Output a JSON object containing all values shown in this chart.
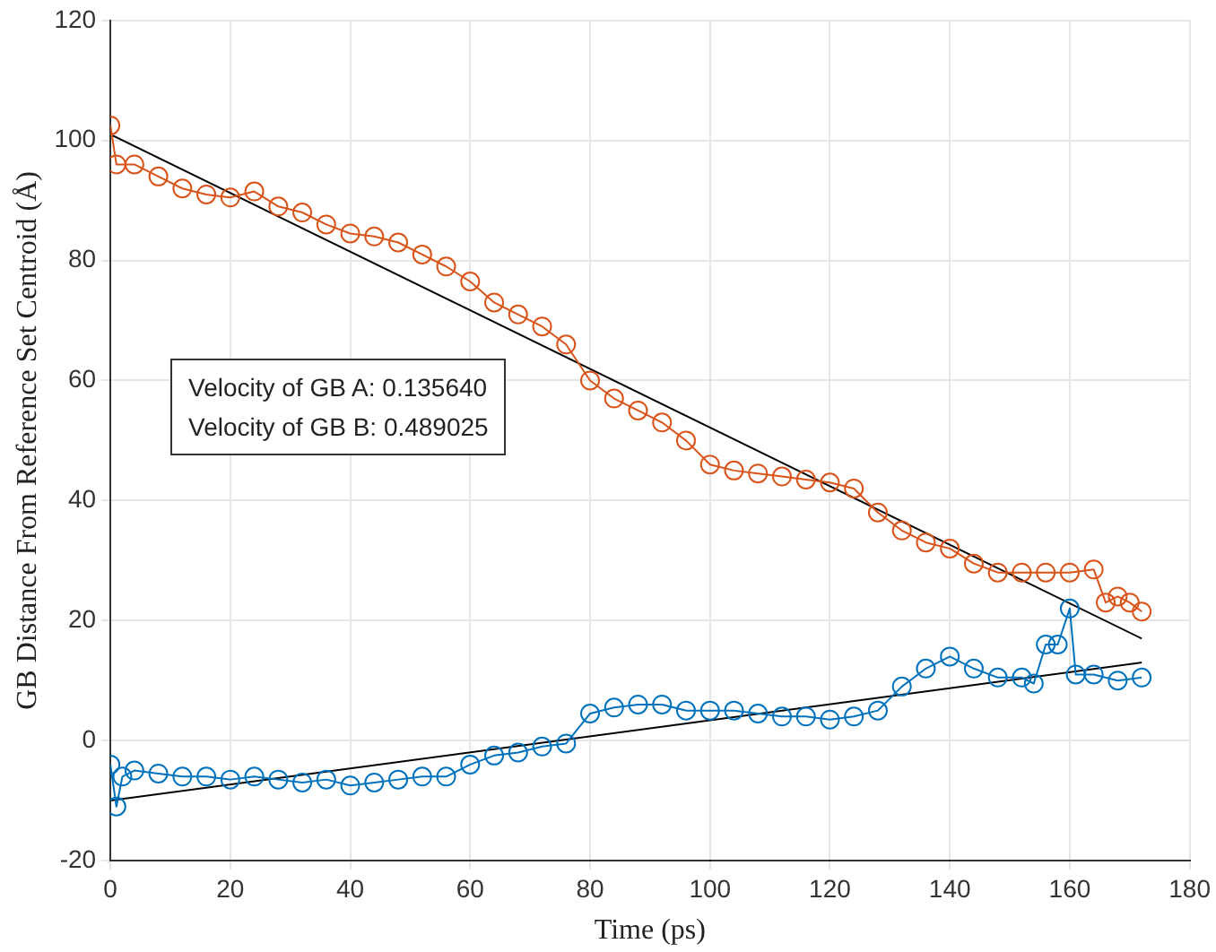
{
  "chart_data": {
    "type": "line",
    "xlabel": "Time (ps)",
    "ylabel": "GB Distance From Reference Set Centroid (Å)",
    "xlim": [
      0,
      180
    ],
    "xticks": [
      0,
      20,
      40,
      60,
      80,
      100,
      120,
      140,
      160,
      180
    ],
    "ylim": [
      -20,
      120
    ],
    "yticks": [
      -20,
      0,
      20,
      40,
      60,
      80,
      100,
      120
    ],
    "grid": true,
    "marker": "circle",
    "line_style": "solid",
    "annotations": [
      "Velocity of GB A: 0.135640",
      "Velocity of GB B: 0.489025"
    ],
    "series": [
      {
        "color": "#d95319",
        "x": [
          0,
          1,
          4,
          8,
          12,
          16,
          20,
          24,
          28,
          32,
          36,
          40,
          44,
          48,
          52,
          56,
          60,
          64,
          68,
          72,
          76,
          80,
          84,
          88,
          92,
          96,
          100,
          104,
          108,
          112,
          116,
          120,
          124,
          128,
          132,
          136,
          140,
          144,
          148,
          152,
          156,
          160,
          164,
          166,
          168,
          170,
          172
        ],
        "values": [
          102.5,
          96,
          96,
          94,
          92,
          91,
          90.5,
          91.5,
          89,
          88,
          86,
          84.5,
          84,
          83,
          81,
          79,
          76.5,
          73,
          71,
          69,
          66,
          60,
          57,
          55,
          53,
          50,
          46,
          45,
          44.5,
          44,
          43.5,
          43,
          42,
          38,
          35,
          33,
          32,
          29.5,
          28,
          28,
          28,
          28,
          28.5,
          23,
          24,
          23,
          21.5
        ]
      },
      {
        "color": "#0072bd",
        "x": [
          0,
          1,
          2,
          4,
          8,
          12,
          16,
          20,
          24,
          28,
          32,
          36,
          40,
          44,
          48,
          52,
          56,
          60,
          64,
          68,
          72,
          76,
          80,
          84,
          88,
          92,
          96,
          100,
          104,
          108,
          112,
          116,
          120,
          124,
          128,
          132,
          136,
          140,
          144,
          148,
          152,
          154,
          156,
          158,
          160,
          161,
          164,
          168,
          172
        ],
        "values": [
          -4,
          -11,
          -6,
          -5,
          -5.5,
          -6,
          -6,
          -6.5,
          -6,
          -6.5,
          -7,
          -6.5,
          -7.5,
          -7,
          -6.5,
          -6,
          -6,
          -4,
          -2.5,
          -2,
          -1,
          -0.5,
          4.5,
          5.5,
          6,
          6,
          5,
          5,
          5,
          4.5,
          4,
          4,
          3.5,
          4,
          5,
          9,
          12,
          14,
          12,
          10.5,
          10.5,
          9.5,
          16,
          16,
          22,
          11,
          11,
          10,
          10.5
        ]
      },
      {
        "type": "line",
        "color": "#000000",
        "marker": "none",
        "x": [
          0,
          172
        ],
        "values": [
          101,
          17
        ]
      },
      {
        "type": "line",
        "color": "#000000",
        "marker": "none",
        "x": [
          0,
          172
        ],
        "values": [
          -10,
          13
        ]
      }
    ]
  }
}
